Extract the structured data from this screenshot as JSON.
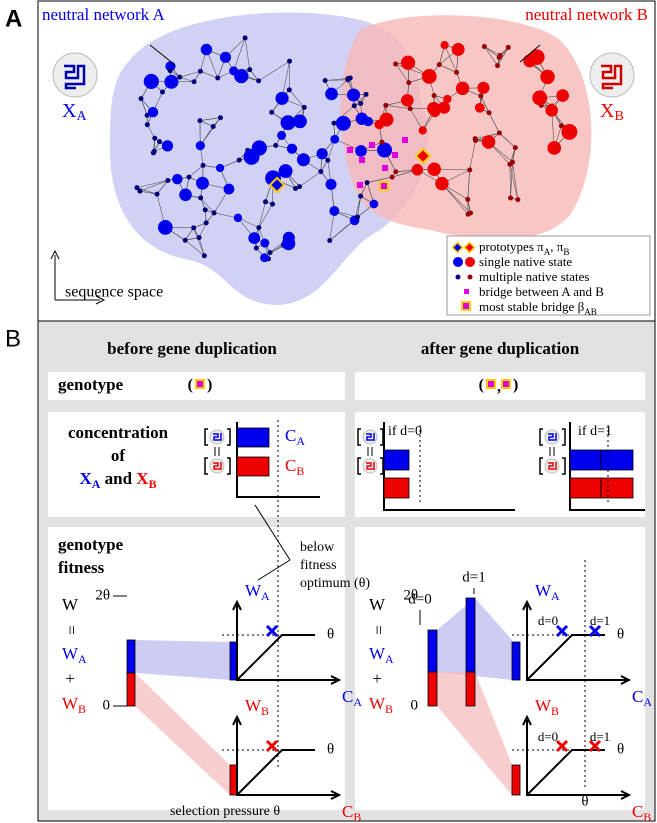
{
  "panel_a": {
    "label": "A",
    "network_a": "neutral network A",
    "network_b": "neutral network B",
    "x_a": [
      {
        "t": "X"
      },
      {
        "sub": "A"
      }
    ],
    "x_b": [
      {
        "t": "X"
      },
      {
        "sub": "B"
      }
    ],
    "axis_label": "sequence space",
    "legend": [
      [
        {
          "t": "prototypes π"
        },
        {
          "sub": "A"
        },
        {
          "t": ", π"
        },
        {
          "sub": "B"
        }
      ],
      [
        {
          "t": "single native state"
        }
      ],
      [
        {
          "t": "multiple native states"
        }
      ],
      [
        {
          "t": "bridge between A and B"
        }
      ],
      [
        {
          "t": "most stable bridge β"
        },
        {
          "sub": "AB"
        }
      ]
    ]
  },
  "panel_b": {
    "label": "B",
    "col_before": "before gene duplication",
    "col_after": "after gene duplication",
    "row_genotype": "genotype",
    "paren_open": "(",
    "paren_close": ")",
    "comma": ",",
    "row_concentration": [
      "concentration",
      "of"
    ],
    "species": [
      {
        "t": "X",
        "color": "#0000ee"
      },
      {
        "sub": "A",
        "color": "#0000ee"
      },
      {
        "t": " and "
      },
      {
        "t": "X",
        "color": "#ee0000"
      },
      {
        "sub": "B",
        "color": "#ee0000"
      }
    ],
    "row_fitness": [
      "genotype",
      "fitness"
    ],
    "if_d0": "if d=0",
    "if_d1": "if d=1",
    "d0": "d=0",
    "d1": "d=1",
    "below_optimum": [
      "below",
      "fitness",
      "optimum (θ)"
    ],
    "selection_pressure": "selection pressure θ",
    "theta": "θ",
    "two_theta": "2θ",
    "zero": "0",
    "w": "W",
    "eq": "=",
    "plus": "+",
    "w_a": [
      {
        "t": "W",
        "color": "#0000ee"
      },
      {
        "sub": "A",
        "color": "#0000ee"
      }
    ],
    "w_b": [
      {
        "t": "W",
        "color": "#ee0000"
      },
      {
        "sub": "B",
        "color": "#ee0000"
      }
    ],
    "c_a": [
      {
        "t": "C",
        "color": "#0000ee"
      },
      {
        "sub": "A",
        "color": "#0000ee"
      }
    ],
    "c_b": [
      {
        "t": "C",
        "color": "#ee0000"
      },
      {
        "sub": "B",
        "color": "#ee0000"
      }
    ]
  }
}
